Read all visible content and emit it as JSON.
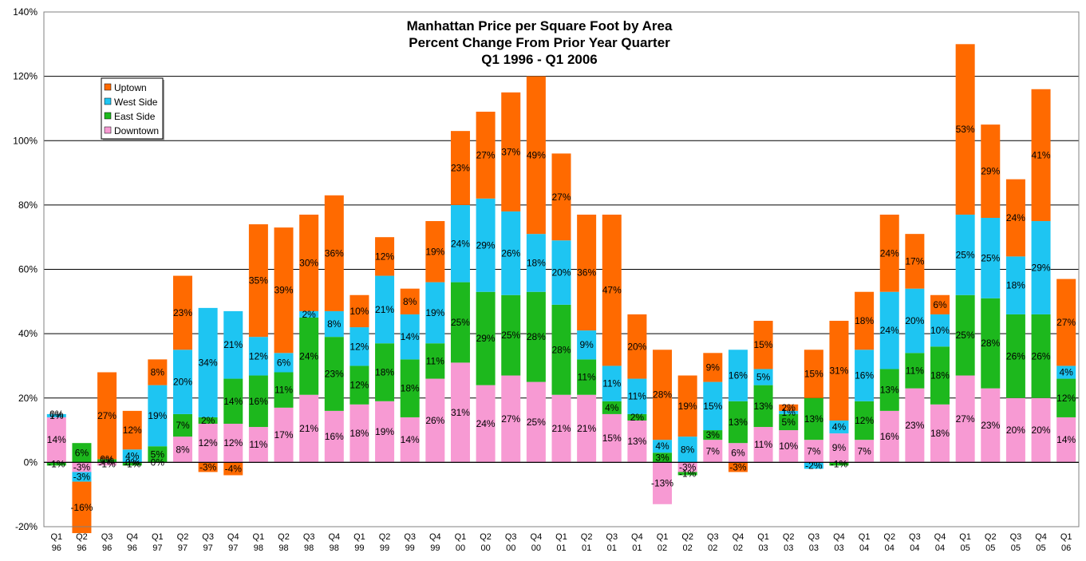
{
  "chart_data": {
    "type": "bar",
    "stacked": true,
    "title": [
      "Manhattan Price per Square Foot by Area",
      "Percent Change From Prior Year Quarter",
      "Q1 1996 - Q1 2006"
    ],
    "xlabel": "",
    "ylabel": "",
    "ylim": [
      -20,
      140
    ],
    "y_ticks": [
      "-20%",
      "0%",
      "20%",
      "40%",
      "60%",
      "80%",
      "100%",
      "120%",
      "140%"
    ],
    "y_tick_values": [
      -20,
      0,
      20,
      40,
      60,
      80,
      100,
      120,
      140
    ],
    "grid": true,
    "legend_position": "top-left",
    "categories": [
      [
        "Q1",
        "96"
      ],
      [
        "Q2",
        "96"
      ],
      [
        "Q3",
        "96"
      ],
      [
        "Q4",
        "96"
      ],
      [
        "Q1",
        "97"
      ],
      [
        "Q2",
        "97"
      ],
      [
        "Q3",
        "97"
      ],
      [
        "Q4",
        "97"
      ],
      [
        "Q1",
        "98"
      ],
      [
        "Q2",
        "98"
      ],
      [
        "Q3",
        "98"
      ],
      [
        "Q4",
        "98"
      ],
      [
        "Q1",
        "99"
      ],
      [
        "Q2",
        "99"
      ],
      [
        "Q3",
        "99"
      ],
      [
        "Q4",
        "99"
      ],
      [
        "Q1",
        "00"
      ],
      [
        "Q2",
        "00"
      ],
      [
        "Q3",
        "00"
      ],
      [
        "Q4",
        "00"
      ],
      [
        "Q1",
        "01"
      ],
      [
        "Q2",
        "01"
      ],
      [
        "Q3",
        "01"
      ],
      [
        "Q4",
        "01"
      ],
      [
        "Q1",
        "02"
      ],
      [
        "Q2",
        "02"
      ],
      [
        "Q3",
        "02"
      ],
      [
        "Q4",
        "02"
      ],
      [
        "Q1",
        "03"
      ],
      [
        "Q2",
        "03"
      ],
      [
        "Q3",
        "03"
      ],
      [
        "Q4",
        "03"
      ],
      [
        "Q1",
        "04"
      ],
      [
        "Q2",
        "04"
      ],
      [
        "Q3",
        "04"
      ],
      [
        "Q4",
        "04"
      ],
      [
        "Q1",
        "05"
      ],
      [
        "Q2",
        "05"
      ],
      [
        "Q3",
        "05"
      ],
      [
        "Q4",
        "05"
      ],
      [
        "Q1",
        "06"
      ]
    ],
    "series": [
      {
        "name": "Downtown",
        "color": "#F79AD3",
        "values": [
          14,
          -3,
          -1,
          0,
          0,
          8,
          12,
          12,
          11,
          17,
          21,
          16,
          18,
          19,
          14,
          26,
          31,
          24,
          27,
          25,
          21,
          21,
          15,
          13,
          -13,
          -3,
          7,
          6,
          11,
          10,
          7,
          9,
          7,
          16,
          23,
          18,
          27,
          23,
          20,
          20,
          14
        ]
      },
      {
        "name": "East Side",
        "color": "#1DB81D",
        "values": [
          -1,
          6,
          1,
          -1,
          5,
          7,
          2,
          14,
          16,
          11,
          24,
          23,
          12,
          18,
          18,
          11,
          25,
          29,
          25,
          28,
          28,
          11,
          4,
          2,
          3,
          -1,
          3,
          13,
          13,
          5,
          13,
          -1,
          12,
          13,
          11,
          18,
          25,
          28,
          26,
          26,
          12
        ]
      },
      {
        "name": "West Side",
        "color": "#1EC5F2",
        "values": [
          1,
          -3,
          0,
          4,
          19,
          20,
          34,
          21,
          12,
          6,
          2,
          8,
          12,
          21,
          14,
          19,
          24,
          29,
          26,
          18,
          20,
          9,
          11,
          11,
          4,
          8,
          15,
          16,
          5,
          1,
          -2,
          4,
          16,
          24,
          20,
          10,
          25,
          25,
          18,
          29,
          4
        ]
      },
      {
        "name": "Uptown",
        "color": "#FF6A00",
        "values": [
          0,
          -16,
          27,
          12,
          8,
          23,
          -3,
          -4,
          35,
          39,
          30,
          36,
          10,
          12,
          8,
          19,
          23,
          27,
          37,
          49,
          27,
          36,
          47,
          20,
          28,
          19,
          9,
          -3,
          15,
          2,
          15,
          31,
          18,
          24,
          17,
          6,
          53,
          29,
          24,
          41,
          27
        ]
      }
    ],
    "labels": {
      "Downtown": [
        "14%",
        "-3%",
        "-1%",
        "0%",
        "0%",
        "8%",
        "12%",
        "12%",
        "11%",
        "17%",
        "21%",
        "16%",
        "18%",
        "19%",
        "14%",
        "26%",
        "31%",
        "24%",
        "27%",
        "25%",
        "21%",
        "21%",
        "15%",
        "13%",
        "-13%",
        "-3%",
        "7%",
        "6%",
        "11%",
        "10%",
        "7%",
        "9%",
        "7%",
        "16%",
        "23%",
        "18%",
        "27%",
        "23%",
        "20%",
        "20%",
        "14%"
      ],
      "East Side": [
        "-1%",
        "6%",
        "1%",
        "-1%",
        "5%",
        "7%",
        "2%",
        "14%",
        "16%",
        "11%",
        "24%",
        "23%",
        "12%",
        "18%",
        "18%",
        "11%",
        "25%",
        "29%",
        "25%",
        "28%",
        "28%",
        "11%",
        "4%",
        "2%",
        "3%",
        "-1%",
        "3%",
        "13%",
        "13%",
        "5%",
        "13%",
        "-1%",
        "12%",
        "13%",
        "11%",
        "18%",
        "25%",
        "28%",
        "26%",
        "26%",
        "12%"
      ],
      "West Side": [
        "1%",
        "-3%",
        "0%",
        "4%",
        "19%",
        "20%",
        "34%",
        "21%",
        "12%",
        "6%",
        "2%",
        "8%",
        "12%",
        "21%",
        "14%",
        "19%",
        "24%",
        "29%",
        "26%",
        "18%",
        "20%",
        "9%",
        "11%",
        "11%",
        "4%",
        "8%",
        "15%",
        "16%",
        "5%",
        "1%",
        "-2%",
        "4%",
        "16%",
        "24%",
        "20%",
        "10%",
        "25%",
        "25%",
        "18%",
        "29%",
        "4%"
      ],
      "Uptown": [
        "0%",
        "-16%",
        "27%",
        "12%",
        "8%",
        "23%",
        "-3%",
        "-4%",
        "35%",
        "39%",
        "30%",
        "36%",
        "10%",
        "12%",
        "8%",
        "19%",
        "23%",
        "27%",
        "37%",
        "49%",
        "27%",
        "36%",
        "47%",
        "20%",
        "28%",
        "19%",
        "9%",
        "-3%",
        "15%",
        "2%",
        "15%",
        "31%",
        "18%",
        "24%",
        "17%",
        "6%",
        "53%",
        "29%",
        "24%",
        "41%",
        "27%"
      ]
    },
    "legend_order": [
      "Uptown",
      "West Side",
      "East Side",
      "Downtown"
    ]
  }
}
